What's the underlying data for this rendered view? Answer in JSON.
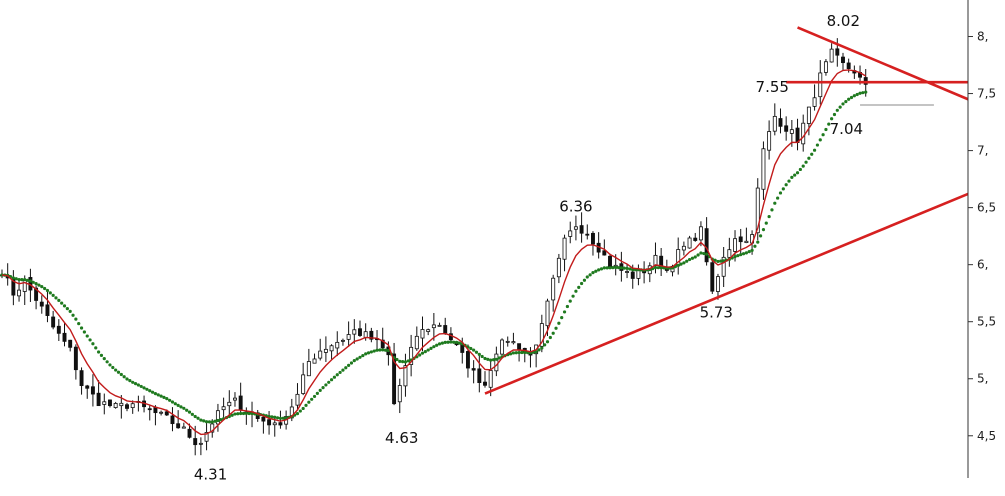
{
  "chart_data": {
    "type": "candlestick",
    "title": "",
    "xlabel": "",
    "ylabel": "",
    "ylim": [
      4.2,
      8.25
    ],
    "y_axis_side": "right",
    "yticks": [
      {
        "value": 8.0,
        "label": "8,"
      },
      {
        "value": 7.5,
        "label": "7,5"
      },
      {
        "value": 7.0,
        "label": "7,"
      },
      {
        "value": 6.5,
        "label": "6,5"
      },
      {
        "value": 6.0,
        "label": "6,"
      },
      {
        "value": 5.5,
        "label": "5,5"
      },
      {
        "value": 5.0,
        "label": "5,"
      },
      {
        "value": 4.5,
        "label": "4,5"
      }
    ],
    "grid": false,
    "price_path_anchors": [
      [
        0,
        5.95
      ],
      [
        2,
        5.75
      ],
      [
        4,
        5.85
      ],
      [
        6,
        5.7
      ],
      [
        9,
        5.45
      ],
      [
        12,
        5.25
      ],
      [
        14,
        4.95
      ],
      [
        17,
        4.8
      ],
      [
        20,
        4.75
      ],
      [
        23,
        4.78
      ],
      [
        26,
        4.72
      ],
      [
        29,
        4.65
      ],
      [
        32,
        4.55
      ],
      [
        34,
        4.45
      ],
      [
        35,
        4.45
      ],
      [
        37,
        4.62
      ],
      [
        39,
        4.75
      ],
      [
        41,
        4.8
      ],
      [
        43,
        4.72
      ],
      [
        45,
        4.65
      ],
      [
        47,
        4.62
      ],
      [
        48,
        4.58
      ],
      [
        50,
        4.68
      ],
      [
        52,
        4.85
      ],
      [
        54,
        5.15
      ],
      [
        56,
        5.25
      ],
      [
        58,
        5.3
      ],
      [
        60,
        5.35
      ],
      [
        62,
        5.42
      ],
      [
        64,
        5.38
      ],
      [
        66,
        5.32
      ],
      [
        68,
        5.2
      ],
      [
        69,
        4.78
      ],
      [
        71,
        5.1
      ],
      [
        73,
        5.38
      ],
      [
        75,
        5.45
      ],
      [
        77,
        5.48
      ],
      [
        79,
        5.35
      ],
      [
        81,
        5.2
      ],
      [
        83,
        5.05
      ],
      [
        85,
        4.95
      ],
      [
        87,
        5.25
      ],
      [
        89,
        5.35
      ],
      [
        91,
        5.28
      ],
      [
        93,
        5.2
      ],
      [
        95,
        5.45
      ],
      [
        97,
        5.85
      ],
      [
        99,
        6.2
      ],
      [
        101,
        6.35
      ],
      [
        103,
        6.28
      ],
      [
        105,
        6.15
      ],
      [
        107,
        6.0
      ],
      [
        109,
        5.95
      ],
      [
        111,
        5.9
      ],
      [
        113,
        5.95
      ],
      [
        115,
        6.05
      ],
      [
        117,
        5.95
      ],
      [
        119,
        6.1
      ],
      [
        121,
        6.2
      ],
      [
        123,
        6.3
      ],
      [
        124,
        6.05
      ],
      [
        125,
        5.73
      ],
      [
        127,
        6.05
      ],
      [
        129,
        6.25
      ],
      [
        131,
        6.2
      ],
      [
        132,
        6.3
      ],
      [
        134,
        7.0
      ],
      [
        136,
        7.3
      ],
      [
        138,
        7.2
      ],
      [
        140,
        7.1
      ],
      [
        142,
        7.35
      ],
      [
        144,
        7.65
      ],
      [
        146,
        7.85
      ],
      [
        148,
        7.75
      ],
      [
        150,
        7.7
      ],
      [
        152,
        7.55
      ]
    ],
    "series": [
      {
        "name": "",
        "kind": "ma-fast",
        "color": "#c21b1b"
      },
      {
        "name": "",
        "kind": "ma-slow-dotted",
        "color": "#1f7a1f"
      }
    ],
    "annotations": [
      {
        "label": "4.31",
        "x": 36,
        "y": 4.31
      },
      {
        "label": "4.63",
        "x": 70,
        "y": 4.63
      },
      {
        "label": "6.36",
        "x": 101,
        "y": 6.36
      },
      {
        "label": "5.73",
        "x": 125,
        "y": 5.73
      },
      {
        "label": "7.55",
        "x": 144,
        "y": 7.55
      },
      {
        "label": "8.02",
        "x": 147,
        "y": 8.02
      },
      {
        "label": "7.04",
        "x": 150,
        "y": 7.04
      }
    ],
    "trendlines": [
      {
        "kind": "support",
        "color": "#d62020",
        "from": [
          85,
          4.87
        ],
        "to": [
          170,
          6.62
        ]
      },
      {
        "kind": "resistance",
        "color": "#d62020",
        "from": [
          140,
          8.08
        ],
        "to": [
          170,
          7.45
        ]
      },
      {
        "kind": "horizontal",
        "color": "#d62020",
        "from": [
          138,
          7.6
        ],
        "to": [
          170,
          7.6
        ]
      },
      {
        "kind": "last-price",
        "color": "#888888",
        "from": [
          151,
          7.4
        ],
        "to": [
          164,
          7.4
        ]
      }
    ]
  }
}
